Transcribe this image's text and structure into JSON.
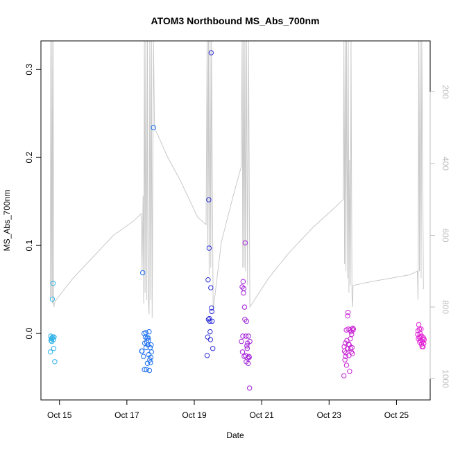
{
  "chart_data": {
    "type": "scatter",
    "title": "ATOM3 Northbound MS_Abs_700nm",
    "xlabel": "Date",
    "ylabel": "MS_Abs_700nm",
    "x_ticks": [
      "Oct 15",
      "Oct 17",
      "Oct 19",
      "Oct 21",
      "Oct 23",
      "Oct 25"
    ],
    "x_tick_days": [
      15,
      17,
      19,
      21,
      23,
      25
    ],
    "xlim": [
      14.45,
      26.0
    ],
    "ylim": [
      -0.0755,
      0.3325
    ],
    "y_ticks": [
      0.0,
      0.1,
      0.2,
      0.3
    ],
    "y_tick_labels": [
      "0.0",
      "0.1",
      "0.2",
      "0.3"
    ],
    "y2_ticks": [
      200,
      400,
      600,
      800,
      1000
    ],
    "y2_tick_labels": [
      "200",
      "400",
      "600",
      "800",
      "1000"
    ],
    "y2lim": [
      1059,
      58
    ],
    "y2_color": "#bdbdbd",
    "grid": false,
    "legend": "none",
    "series": [
      {
        "color": "#29b0e8",
        "points": [
          [
            14.73,
            -0.021
          ],
          [
            14.74,
            -0.003
          ],
          [
            14.75,
            -0.008
          ],
          [
            14.76,
            -0.006
          ],
          [
            14.77,
            -0.009
          ],
          [
            14.78,
            -0.005
          ],
          [
            14.79,
            0.039
          ],
          [
            14.8,
            -0.004
          ],
          [
            14.81,
            0.057
          ],
          [
            14.82,
            -0.007
          ],
          [
            14.83,
            -0.017
          ],
          [
            14.84,
            -0.004
          ],
          [
            14.86,
            -0.032
          ]
        ]
      },
      {
        "color": "#1a6ef0",
        "points": [
          [
            17.44,
            -0.02
          ],
          [
            17.45,
            -0.02
          ],
          [
            17.47,
            0.069
          ],
          [
            17.49,
            -0.026
          ],
          [
            17.51,
            0.0
          ],
          [
            17.52,
            -0.041
          ],
          [
            17.53,
            -0.011
          ],
          [
            17.55,
            -0.004
          ],
          [
            17.56,
            0.001
          ],
          [
            17.57,
            -0.016
          ],
          [
            17.58,
            -0.041
          ],
          [
            17.59,
            -0.01
          ],
          [
            17.6,
            -0.005
          ],
          [
            17.61,
            -0.034
          ],
          [
            17.62,
            -0.013
          ],
          [
            17.63,
            -0.005
          ],
          [
            17.64,
            -0.008
          ],
          [
            17.65,
            -0.024
          ],
          [
            17.66,
            0.002
          ],
          [
            17.67,
            -0.042
          ],
          [
            17.68,
            -0.03
          ],
          [
            17.69,
            -0.016
          ],
          [
            17.7,
            -0.033
          ],
          [
            17.71,
            -0.027
          ],
          [
            17.72,
            -0.013
          ],
          [
            17.73,
            -0.021
          ],
          [
            17.79,
            0.234
          ]
        ]
      },
      {
        "color": "#2a2ad6",
        "points": [
          [
            19.38,
            -0.025
          ],
          [
            19.4,
            -0.004
          ],
          [
            19.41,
            0.061
          ],
          [
            19.42,
            0.016
          ],
          [
            19.43,
            0.152
          ],
          [
            19.44,
            0.097
          ],
          [
            19.45,
            0.017
          ],
          [
            19.46,
            0.014
          ],
          [
            19.47,
            0.002
          ],
          [
            19.48,
            -0.007
          ],
          [
            19.49,
            0.052
          ],
          [
            19.5,
            0.319
          ],
          [
            19.51,
            0.029
          ],
          [
            19.52,
            0.025
          ],
          [
            19.53,
            0.014
          ],
          [
            19.55,
            -0.017
          ]
        ]
      },
      {
        "color": "#a321d8",
        "points": [
          [
            20.4,
            -0.009
          ],
          [
            20.42,
            0.053
          ],
          [
            20.43,
            -0.021
          ],
          [
            20.44,
            -0.003
          ],
          [
            20.45,
            0.059
          ],
          [
            20.46,
            0.046
          ],
          [
            20.47,
            0.051
          ],
          [
            20.48,
            -0.026
          ],
          [
            20.49,
            0.03
          ],
          [
            20.5,
            0.016
          ],
          [
            20.51,
            0.103
          ],
          [
            20.52,
            -0.025
          ],
          [
            20.53,
            -0.003
          ],
          [
            20.54,
            -0.032
          ],
          [
            20.55,
            0.014
          ],
          [
            20.56,
            -0.014
          ],
          [
            20.57,
            -0.017
          ],
          [
            20.58,
            -0.011
          ],
          [
            20.59,
            -0.028
          ],
          [
            20.6,
            -0.034
          ],
          [
            20.61,
            -0.003
          ],
          [
            20.62,
            -0.026
          ],
          [
            20.63,
            -0.027
          ],
          [
            20.64,
            -0.062
          ],
          [
            20.65,
            -0.009
          ]
        ]
      },
      {
        "color": "#c721d4",
        "points": [
          [
            23.44,
            -0.048
          ],
          [
            23.45,
            -0.015
          ],
          [
            23.46,
            -0.02
          ],
          [
            23.47,
            -0.03
          ],
          [
            23.48,
            -0.011
          ],
          [
            23.49,
            -0.026
          ],
          [
            23.5,
            -0.022
          ],
          [
            23.51,
            0.004
          ],
          [
            23.52,
            -0.036
          ],
          [
            23.53,
            -0.008
          ],
          [
            23.54,
            -0.017
          ],
          [
            23.55,
            0.02
          ],
          [
            23.56,
            0.024
          ],
          [
            23.57,
            0.005
          ],
          [
            23.58,
            -0.012
          ],
          [
            23.59,
            -0.025
          ],
          [
            23.6,
            -0.013
          ],
          [
            23.61,
            -0.043
          ],
          [
            23.62,
            0.004
          ],
          [
            23.63,
            -0.006
          ],
          [
            23.64,
            -0.017
          ],
          [
            23.65,
            0.002
          ],
          [
            23.66,
            -0.021
          ],
          [
            23.67,
            -0.001
          ],
          [
            23.68,
            -0.016
          ],
          [
            23.69,
            -0.023
          ],
          [
            23.7,
            0.006
          ],
          [
            23.71,
            0.004
          ],
          [
            23.72,
            0.005
          ]
        ]
      },
      {
        "color": "#e021d3",
        "points": [
          [
            25.63,
            -0.001
          ],
          [
            25.64,
            0.003
          ],
          [
            25.65,
            -0.006
          ],
          [
            25.66,
            0.01
          ],
          [
            25.67,
            -0.004
          ],
          [
            25.68,
            0.005
          ],
          [
            25.69,
            -0.01
          ],
          [
            25.7,
            0.0
          ],
          [
            25.71,
            -0.008
          ],
          [
            25.72,
            -0.004
          ],
          [
            25.73,
            0.005
          ],
          [
            25.74,
            -0.012
          ],
          [
            25.75,
            -0.003
          ],
          [
            25.76,
            -0.015
          ],
          [
            25.77,
            -0.009
          ],
          [
            25.78,
            -0.007
          ],
          [
            25.79,
            -0.015
          ],
          [
            25.8,
            -0.005
          ],
          [
            25.81,
            -0.011
          ],
          [
            25.82,
            -0.007
          ]
        ]
      }
    ],
    "altitude_series": {
      "color": "#c9c9c9",
      "points": [
        [
          14.73,
          780
        ],
        [
          14.74,
          58
        ],
        [
          14.76,
          770
        ],
        [
          14.78,
          58
        ],
        [
          14.79,
          790
        ],
        [
          14.81,
          58
        ],
        [
          14.83,
          800
        ],
        [
          14.85,
          790
        ],
        [
          14.9,
          780
        ],
        [
          15.4,
          720
        ],
        [
          16.0,
          660
        ],
        [
          16.6,
          600
        ],
        [
          17.2,
          560
        ],
        [
          17.42,
          540
        ],
        [
          17.45,
          700
        ],
        [
          17.48,
          490
        ],
        [
          17.5,
          790
        ],
        [
          17.52,
          58
        ],
        [
          17.54,
          760
        ],
        [
          17.56,
          58
        ],
        [
          17.59,
          780
        ],
        [
          17.61,
          58
        ],
        [
          17.63,
          770
        ],
        [
          17.66,
          820
        ],
        [
          17.68,
          58
        ],
        [
          17.71,
          780
        ],
        [
          17.73,
          58
        ],
        [
          17.75,
          830
        ],
        [
          17.79,
          58
        ],
        [
          17.82,
          300
        ],
        [
          18.2,
          380
        ],
        [
          18.6,
          450
        ],
        [
          19.1,
          550
        ],
        [
          19.35,
          570
        ],
        [
          19.38,
          58
        ],
        [
          19.4,
          630
        ],
        [
          19.42,
          58
        ],
        [
          19.44,
          710
        ],
        [
          19.47,
          58
        ],
        [
          19.49,
          690
        ],
        [
          19.51,
          58
        ],
        [
          19.56,
          810
        ],
        [
          19.8,
          620
        ],
        [
          20.1,
          510
        ],
        [
          20.3,
          440
        ],
        [
          20.39,
          410
        ],
        [
          20.42,
          58
        ],
        [
          20.44,
          690
        ],
        [
          20.46,
          58
        ],
        [
          20.48,
          690
        ],
        [
          20.5,
          58
        ],
        [
          20.52,
          700
        ],
        [
          20.55,
          58
        ],
        [
          20.58,
          740
        ],
        [
          20.61,
          58
        ],
        [
          20.65,
          800
        ],
        [
          21.2,
          720
        ],
        [
          21.8,
          650
        ],
        [
          22.5,
          580
        ],
        [
          23.2,
          520
        ],
        [
          23.42,
          500
        ],
        [
          23.44,
          58
        ],
        [
          23.46,
          680
        ],
        [
          23.48,
          58
        ],
        [
          23.5,
          700
        ],
        [
          23.52,
          58
        ],
        [
          23.55,
          720
        ],
        [
          23.57,
          58
        ],
        [
          23.59,
          760
        ],
        [
          23.61,
          390
        ],
        [
          23.63,
          740
        ],
        [
          23.65,
          58
        ],
        [
          23.68,
          770
        ],
        [
          23.7,
          800
        ],
        [
          23.71,
          740
        ],
        [
          24.2,
          730
        ],
        [
          24.8,
          720
        ],
        [
          25.4,
          710
        ],
        [
          25.62,
          700
        ],
        [
          25.64,
          780
        ],
        [
          25.66,
          58
        ],
        [
          25.68,
          700
        ],
        [
          25.7,
          58
        ],
        [
          25.73,
          720
        ],
        [
          25.75,
          58
        ],
        [
          25.8,
          750
        ]
      ]
    }
  }
}
